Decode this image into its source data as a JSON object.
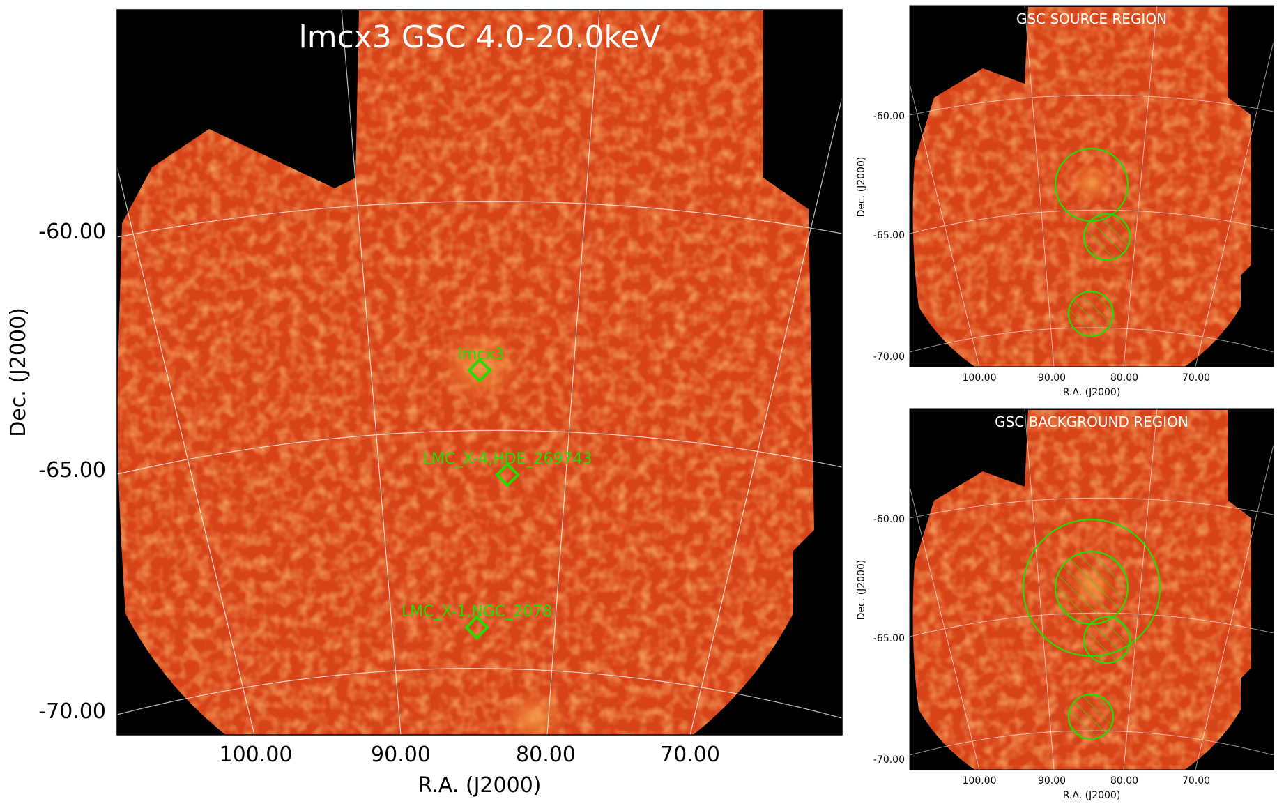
{
  "main_panel": {
    "title": "lmcx3 GSC 4.0-20.0keV",
    "xlabel": "R.A. (J2000)",
    "ylabel": "Dec. (J2000)",
    "xticks": [
      "100.00",
      "90.00",
      "80.00",
      "70.00"
    ],
    "yticks": [
      "-60.00",
      "-65.00",
      "-70.00"
    ],
    "sources": [
      {
        "name": "lmcx3"
      },
      {
        "name": "LMC_X-4,HDE_269743"
      },
      {
        "name": "LMC_X-1,NGC_2078"
      }
    ],
    "marker_color": "#22dd00"
  },
  "source_panel": {
    "title": "GSC SOURCE REGION",
    "xlabel": "R.A. (J2000)",
    "ylabel": "Dec. (J2000)",
    "xticks": [
      "100.00",
      "90.00",
      "80.00",
      "70.00"
    ],
    "yticks": [
      "-60.00",
      "-65.00",
      "-70.00"
    ]
  },
  "background_panel": {
    "title": "GSC BACKGROUND REGION",
    "xlabel": "R.A. (J2000)",
    "ylabel": "Dec. (J2000)",
    "xticks": [
      "100.00",
      "90.00",
      "80.00",
      "70.00"
    ],
    "yticks": [
      "-60.00",
      "-65.00",
      "-70.00"
    ]
  },
  "colors": {
    "background": "#000000",
    "field": "#d8441a",
    "bright": "#f07a2a",
    "grid": "#ffffff",
    "region": "#22dd00"
  }
}
